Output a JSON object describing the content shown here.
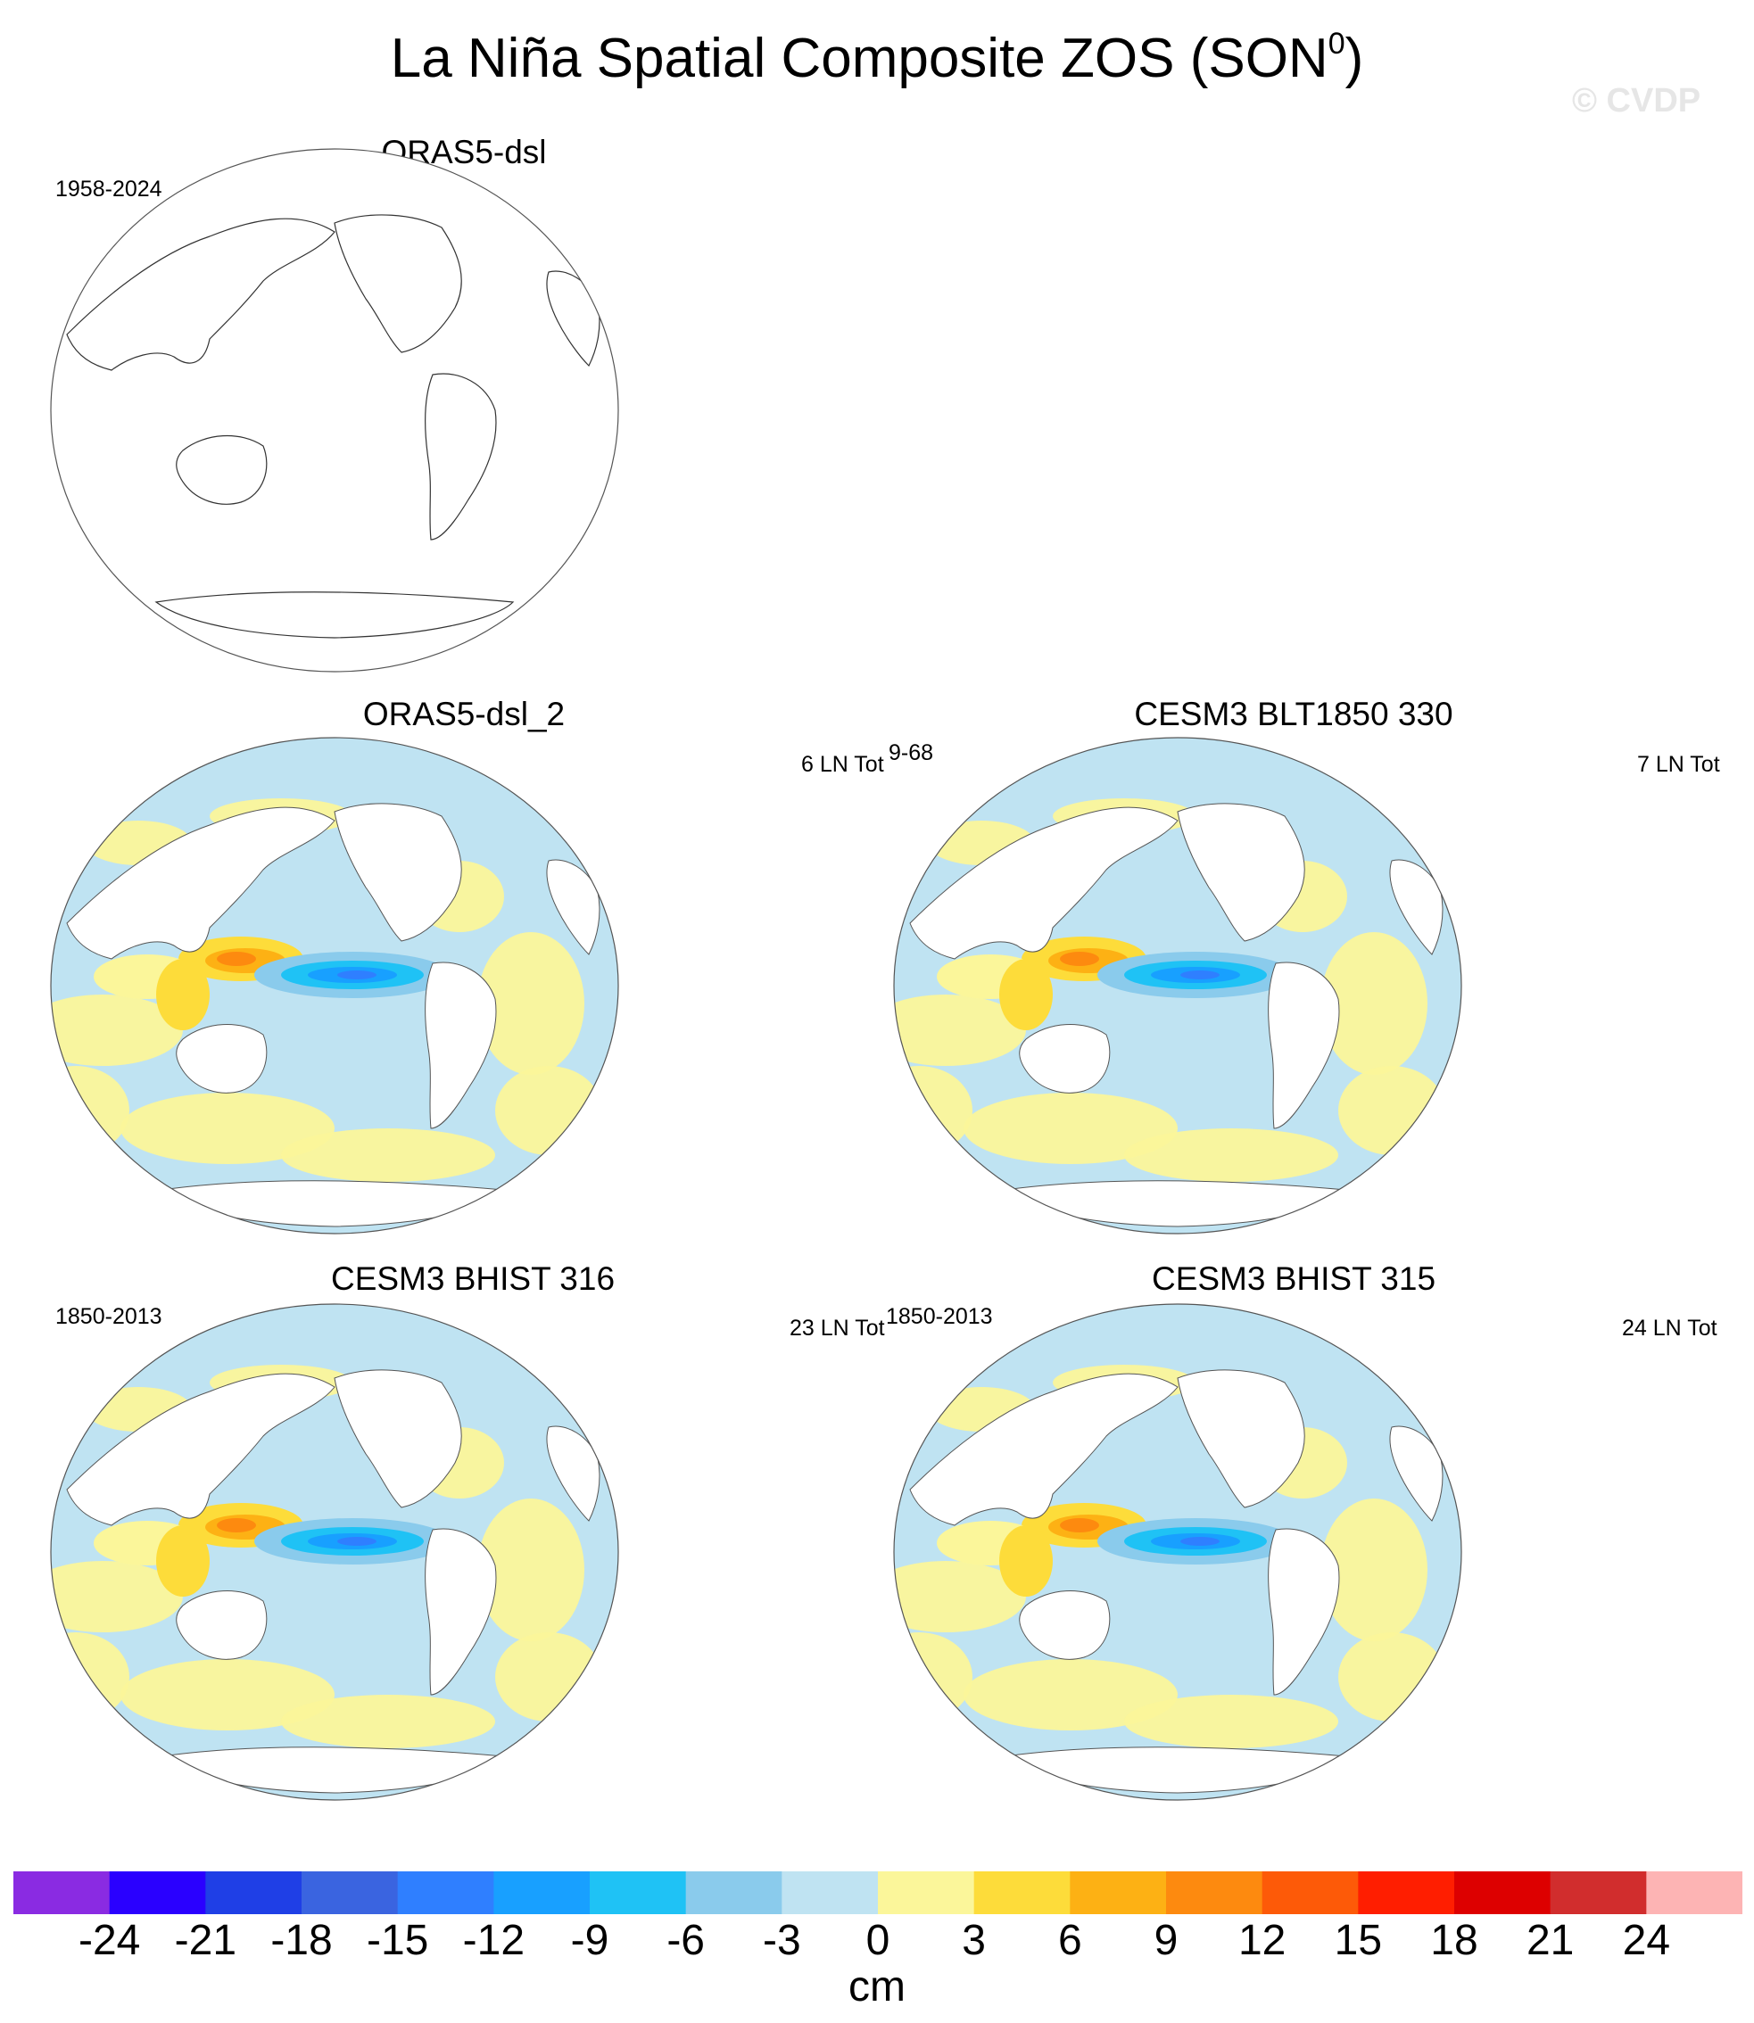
{
  "title": {
    "text": "La Niña Spatial Composite ZOS (SON",
    "superscript": "0",
    "close": ")"
  },
  "watermark": "© CVDP",
  "panels": [
    {
      "title": "ORAS5-dsl",
      "left_label": "1958-2024",
      "right_label": "",
      "filled": false
    },
    {
      "title": "ORAS5-dsl_2",
      "left_label": "",
      "right_label": "6 LN Tot",
      "right_extra": "9-68",
      "filled": true
    },
    {
      "title": "CESM3 BLT1850 330",
      "left_label": "",
      "right_label": "7 LN Tot",
      "filled": true
    },
    {
      "title": "CESM3 BHIST 316",
      "left_label": "1850-2013",
      "right_label": "23 LN Tot",
      "filled": true
    },
    {
      "title": "CESM3 BHIST 315",
      "left_label": "1850-2013",
      "right_label": "24 LN Tot",
      "filled": true
    }
  ],
  "colorbar": {
    "unit": "cm",
    "tick_labels": [
      "-24",
      "-21",
      "-18",
      "-15",
      "-12",
      "-9",
      "-6",
      "-3",
      "0",
      "3",
      "6",
      "9",
      "12",
      "15",
      "18",
      "21",
      "24"
    ],
    "colors": [
      "#8a2be2",
      "#2a00ff",
      "#1f3fe6",
      "#3a64e0",
      "#2f7fff",
      "#18a0ff",
      "#1fc2f5",
      "#8acbec",
      "#bfe3f2",
      "#fbf69a",
      "#fddc3a",
      "#fdb114",
      "#fd8a0f",
      "#fd5a08",
      "#ff1e00",
      "#dd0000",
      "#d12d2d",
      "#fdb4b4"
    ]
  }
}
